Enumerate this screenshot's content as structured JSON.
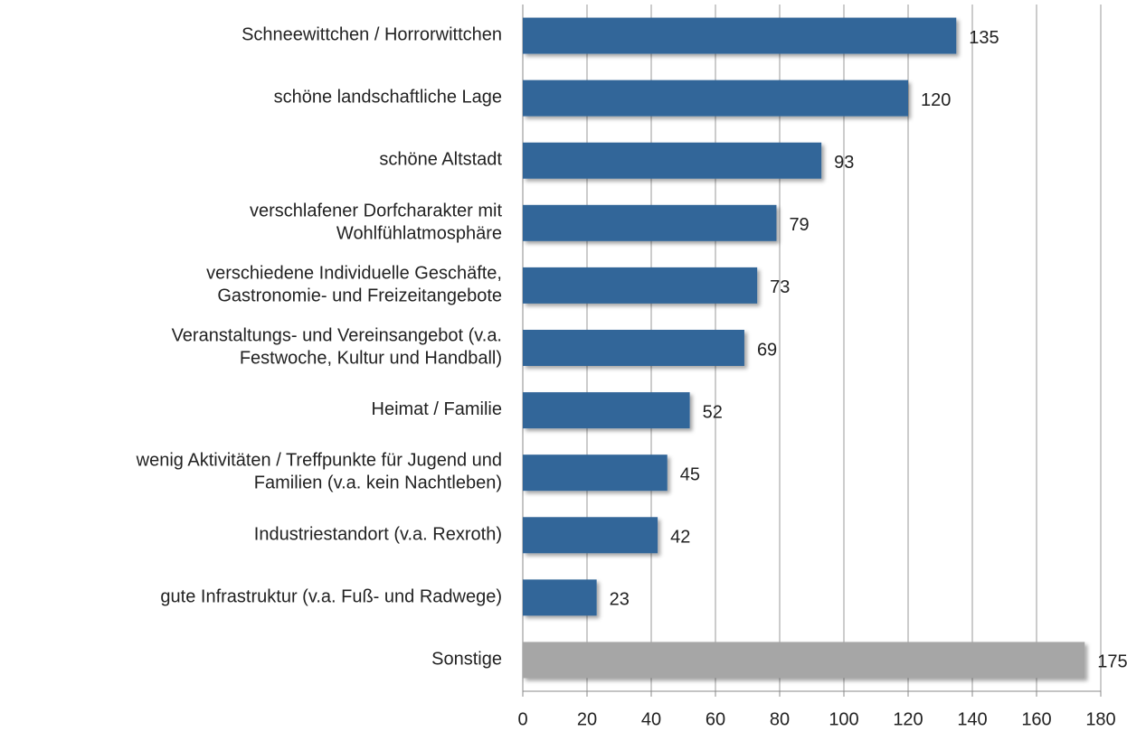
{
  "chart_data": {
    "type": "bar",
    "orientation": "horizontal",
    "categories": [
      [
        "Schneewittchen / Horrorwittchen"
      ],
      [
        "schöne landschaftliche Lage"
      ],
      [
        "schöne Altstadt"
      ],
      [
        "verschlafener Dorfcharakter mit",
        "Wohlfühlatmosphäre"
      ],
      [
        "verschiedene Individuelle Geschäfte,",
        "Gastronomie- und Freizeitangebote"
      ],
      [
        "Veranstaltungs- und Vereinsangebot (v.a.",
        "Festwoche, Kultur und Handball)"
      ],
      [
        "Heimat / Familie"
      ],
      [
        "wenig Aktivitäten / Treffpunkte für Jugend und",
        "Familien (v.a. kein Nachtleben)"
      ],
      [
        "Industriestandort (v.a. Rexroth)"
      ],
      [
        "gute Infrastruktur (v.a. Fuß- und Radwege)"
      ],
      [
        "Sonstige"
      ]
    ],
    "values": [
      135,
      120,
      93,
      79,
      73,
      69,
      52,
      45,
      42,
      23,
      175
    ],
    "colors": [
      "#336699",
      "#336699",
      "#336699",
      "#336699",
      "#336699",
      "#336699",
      "#336699",
      "#336699",
      "#336699",
      "#336699",
      "#a6a6a6"
    ],
    "xlim": [
      0,
      180
    ],
    "xticks": [
      0,
      20,
      40,
      60,
      80,
      100,
      120,
      140,
      160,
      180
    ],
    "grid": true
  }
}
